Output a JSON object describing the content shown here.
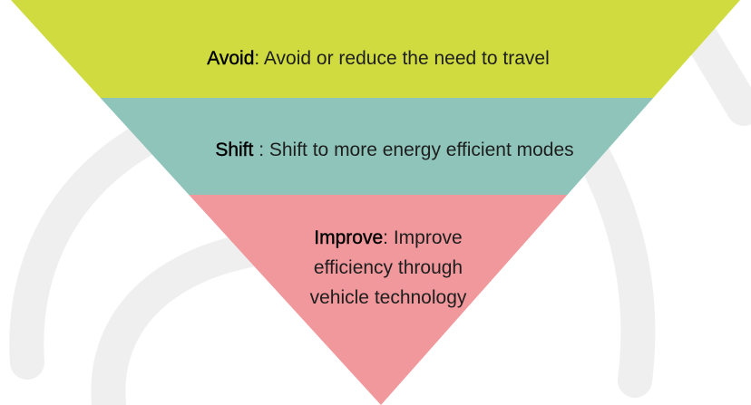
{
  "levels": [
    {
      "term": "Avoid",
      "description": ": Avoid or reduce the need to travel"
    },
    {
      "term": "Shift",
      "description": " : Shift to more energy efficient modes"
    },
    {
      "term": "Improve",
      "description": ": Improve efficiency through vehicle technology"
    }
  ]
}
